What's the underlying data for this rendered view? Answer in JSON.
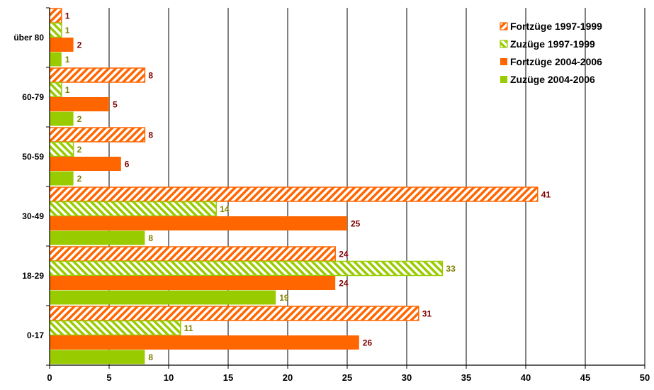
{
  "chart_data": {
    "type": "bar",
    "orientation": "horizontal",
    "categories": [
      "0-17",
      "18-29",
      "30-49",
      "50-59",
      "60-79",
      "über 80"
    ],
    "series": [
      {
        "name": "Fortzüge 1997-1999",
        "values": [
          31,
          24,
          41,
          8,
          8,
          1
        ],
        "color": "#ff6600",
        "style": "hatched",
        "label_color": "#800000"
      },
      {
        "name": "Zuzüge 1997-1999",
        "values": [
          11,
          33,
          14,
          2,
          1,
          1
        ],
        "color": "#99cc00",
        "style": "hatched",
        "label_color": "#808000"
      },
      {
        "name": "Fortzüge 2004-2006",
        "values": [
          26,
          24,
          25,
          6,
          5,
          2
        ],
        "color": "#ff6600",
        "style": "solid",
        "label_color": "#800000"
      },
      {
        "name": "Zuzüge 2004-2006",
        "values": [
          8,
          19,
          8,
          2,
          2,
          1
        ],
        "color": "#99cc00",
        "style": "solid",
        "label_color": "#808000"
      }
    ],
    "xlim": [
      0,
      50
    ],
    "xticks": [
      0,
      5,
      10,
      15,
      20,
      25,
      30,
      35,
      40,
      45,
      50
    ],
    "grid": "vertical",
    "legend": "top-right",
    "title": "",
    "xlabel": "",
    "ylabel": ""
  }
}
